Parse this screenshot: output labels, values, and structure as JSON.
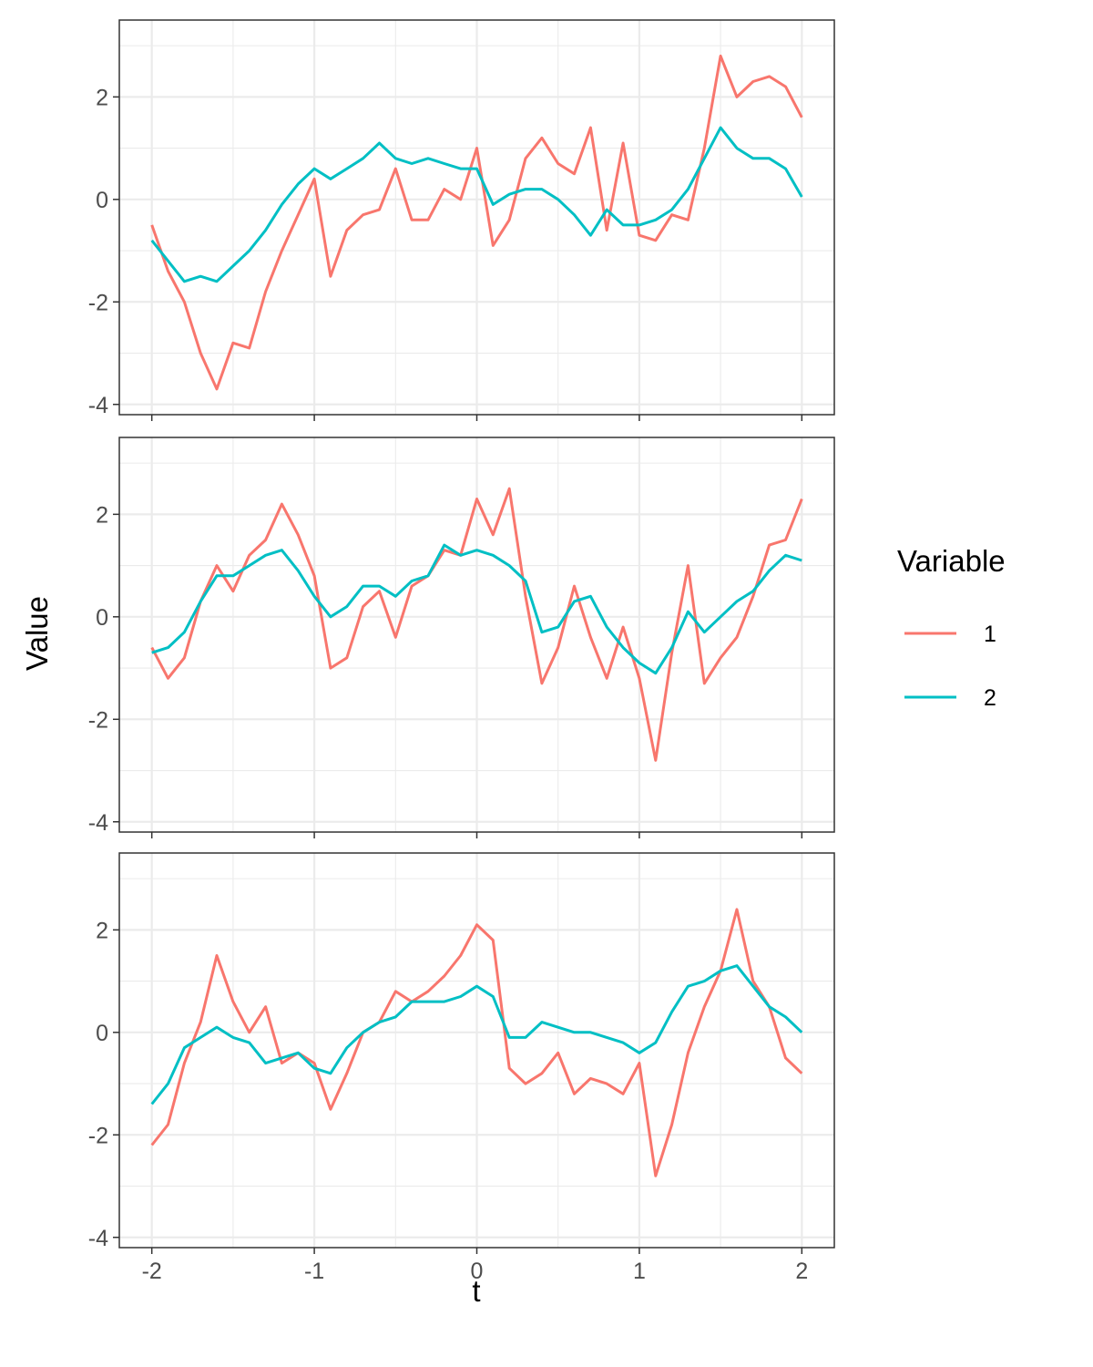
{
  "chart_data": {
    "type": "line",
    "xlabel": "t",
    "ylabel": "Value",
    "xlim": [
      -2.2,
      2.2
    ],
    "ylim": [
      -4.2,
      3.5
    ],
    "x_ticks": [
      "-2",
      "-1",
      "0",
      "1",
      "2"
    ],
    "y_ticks": [
      "-4",
      "-2",
      "0",
      "2"
    ],
    "grid": true,
    "facets": 3,
    "legend": {
      "title": "Variable",
      "placement": "right",
      "entries": [
        {
          "label": "1",
          "color": "#F8766D"
        },
        {
          "label": "2",
          "color": "#00BFC4"
        }
      ]
    },
    "panels": [
      {
        "series": [
          {
            "name": "1",
            "color": "#F8766D",
            "x": [
              -2,
              -1.9,
              -1.8,
              -1.7,
              -1.6,
              -1.5,
              -1.4,
              -1.3,
              -1.2,
              -1.1,
              -1.0,
              -0.9,
              -0.8,
              -0.7,
              -0.6,
              -0.5,
              -0.4,
              -0.3,
              -0.2,
              -0.1,
              0,
              0.1,
              0.2,
              0.3,
              0.4,
              0.5,
              0.6,
              0.7,
              0.8,
              0.9,
              1.0,
              1.1,
              1.2,
              1.3,
              1.4,
              1.5,
              1.6,
              1.7,
              1.8,
              1.9,
              2.0
            ],
            "y": [
              -0.5,
              -1.4,
              -2.0,
              -3.0,
              -3.7,
              -2.8,
              -2.9,
              -1.8,
              -1.0,
              -0.3,
              0.4,
              -1.5,
              -0.6,
              -0.3,
              -0.2,
              0.6,
              -0.4,
              -0.4,
              0.2,
              0.0,
              1.0,
              -0.9,
              -0.4,
              0.8,
              1.2,
              0.7,
              0.5,
              1.4,
              -0.6,
              1.1,
              -0.7,
              -0.8,
              -0.3,
              -0.4,
              1.0,
              2.8,
              2.0,
              2.3,
              2.4,
              2.2,
              1.6
            ]
          },
          {
            "name": "2",
            "color": "#00BFC4",
            "x": [
              -2,
              -1.9,
              -1.8,
              -1.7,
              -1.6,
              -1.5,
              -1.4,
              -1.3,
              -1.2,
              -1.1,
              -1.0,
              -0.9,
              -0.8,
              -0.7,
              -0.6,
              -0.5,
              -0.4,
              -0.3,
              -0.2,
              -0.1,
              0,
              0.1,
              0.2,
              0.3,
              0.4,
              0.5,
              0.6,
              0.7,
              0.8,
              0.9,
              1.0,
              1.1,
              1.2,
              1.3,
              1.4,
              1.5,
              1.6,
              1.7,
              1.8,
              1.9,
              2.0
            ],
            "y": [
              -0.8,
              -1.2,
              -1.6,
              -1.5,
              -1.6,
              -1.3,
              -1.0,
              -0.6,
              -0.1,
              0.3,
              0.6,
              0.4,
              0.6,
              0.8,
              1.1,
              0.8,
              0.7,
              0.8,
              0.7,
              0.6,
              0.6,
              -0.1,
              0.1,
              0.2,
              0.2,
              0.0,
              -0.3,
              -0.7,
              -0.2,
              -0.5,
              -0.5,
              -0.4,
              -0.2,
              0.2,
              0.8,
              1.4,
              1.0,
              0.8,
              0.8,
              0.6,
              0.05
            ]
          }
        ]
      },
      {
        "series": [
          {
            "name": "1",
            "color": "#F8766D",
            "x": [
              -2,
              -1.9,
              -1.8,
              -1.7,
              -1.6,
              -1.5,
              -1.4,
              -1.3,
              -1.2,
              -1.1,
              -1.0,
              -0.9,
              -0.8,
              -0.7,
              -0.6,
              -0.5,
              -0.4,
              -0.3,
              -0.2,
              -0.1,
              0,
              0.1,
              0.2,
              0.3,
              0.4,
              0.5,
              0.6,
              0.7,
              0.8,
              0.9,
              1.0,
              1.1,
              1.2,
              1.3,
              1.4,
              1.5,
              1.6,
              1.7,
              1.8,
              1.9,
              2.0
            ],
            "y": [
              -0.6,
              -1.2,
              -0.8,
              0.3,
              1.0,
              0.5,
              1.2,
              1.5,
              2.2,
              1.6,
              0.8,
              -1.0,
              -0.8,
              0.2,
              0.5,
              -0.4,
              0.6,
              0.8,
              1.3,
              1.2,
              2.3,
              1.6,
              2.5,
              0.4,
              -1.3,
              -0.6,
              0.6,
              -0.4,
              -1.2,
              -0.2,
              -1.2,
              -2.8,
              -0.7,
              1.0,
              -1.3,
              -0.8,
              -0.4,
              0.4,
              1.4,
              1.5,
              2.3
            ]
          },
          {
            "name": "2",
            "color": "#00BFC4",
            "x": [
              -2,
              -1.9,
              -1.8,
              -1.7,
              -1.6,
              -1.5,
              -1.4,
              -1.3,
              -1.2,
              -1.1,
              -1.0,
              -0.9,
              -0.8,
              -0.7,
              -0.6,
              -0.5,
              -0.4,
              -0.3,
              -0.2,
              -0.1,
              0,
              0.1,
              0.2,
              0.3,
              0.4,
              0.5,
              0.6,
              0.7,
              0.8,
              0.9,
              1.0,
              1.1,
              1.2,
              1.3,
              1.4,
              1.5,
              1.6,
              1.7,
              1.8,
              1.9,
              2.0
            ],
            "y": [
              -0.7,
              -0.6,
              -0.3,
              0.3,
              0.8,
              0.8,
              1.0,
              1.2,
              1.3,
              0.9,
              0.4,
              0.0,
              0.2,
              0.6,
              0.6,
              0.4,
              0.7,
              0.8,
              1.4,
              1.2,
              1.3,
              1.2,
              1.0,
              0.7,
              -0.3,
              -0.2,
              0.3,
              0.4,
              -0.2,
              -0.6,
              -0.9,
              -1.1,
              -0.6,
              0.1,
              -0.3,
              0.0,
              0.3,
              0.5,
              0.9,
              1.2,
              1.1
            ]
          }
        ]
      },
      {
        "series": [
          {
            "name": "1",
            "color": "#F8766D",
            "x": [
              -2,
              -1.9,
              -1.8,
              -1.7,
              -1.6,
              -1.5,
              -1.4,
              -1.3,
              -1.2,
              -1.1,
              -1.0,
              -0.9,
              -0.8,
              -0.7,
              -0.6,
              -0.5,
              -0.4,
              -0.3,
              -0.2,
              -0.1,
              0,
              0.1,
              0.2,
              0.3,
              0.4,
              0.5,
              0.6,
              0.7,
              0.8,
              0.9,
              1.0,
              1.1,
              1.2,
              1.3,
              1.4,
              1.5,
              1.6,
              1.7,
              1.8,
              1.9,
              2.0
            ],
            "y": [
              -2.2,
              -1.8,
              -0.6,
              0.2,
              1.5,
              0.6,
              0.0,
              0.5,
              -0.6,
              -0.4,
              -0.6,
              -1.5,
              -0.8,
              0.0,
              0.2,
              0.8,
              0.6,
              0.8,
              1.1,
              1.5,
              2.1,
              1.8,
              -0.7,
              -1.0,
              -0.8,
              -0.4,
              -1.2,
              -0.9,
              -1.0,
              -1.2,
              -0.6,
              -2.8,
              -1.8,
              -0.4,
              0.5,
              1.2,
              2.4,
              1.0,
              0.5,
              -0.5,
              -0.8
            ]
          },
          {
            "name": "2",
            "color": "#00BFC4",
            "x": [
              -2,
              -1.9,
              -1.8,
              -1.7,
              -1.6,
              -1.5,
              -1.4,
              -1.3,
              -1.2,
              -1.1,
              -1.0,
              -0.9,
              -0.8,
              -0.7,
              -0.6,
              -0.5,
              -0.4,
              -0.3,
              -0.2,
              -0.1,
              0,
              0.1,
              0.2,
              0.3,
              0.4,
              0.5,
              0.6,
              0.7,
              0.8,
              0.9,
              1.0,
              1.1,
              1.2,
              1.3,
              1.4,
              1.5,
              1.6,
              1.7,
              1.8,
              1.9,
              2.0
            ],
            "y": [
              -1.4,
              -1.0,
              -0.3,
              -0.1,
              0.1,
              -0.1,
              -0.2,
              -0.6,
              -0.5,
              -0.4,
              -0.7,
              -0.8,
              -0.3,
              0.0,
              0.2,
              0.3,
              0.6,
              0.6,
              0.6,
              0.7,
              0.9,
              0.7,
              -0.1,
              -0.1,
              0.2,
              0.1,
              0.0,
              0.0,
              -0.1,
              -0.2,
              -0.4,
              -0.2,
              0.4,
              0.9,
              1.0,
              1.2,
              1.3,
              0.9,
              0.5,
              0.3,
              0.0
            ]
          }
        ]
      }
    ]
  }
}
